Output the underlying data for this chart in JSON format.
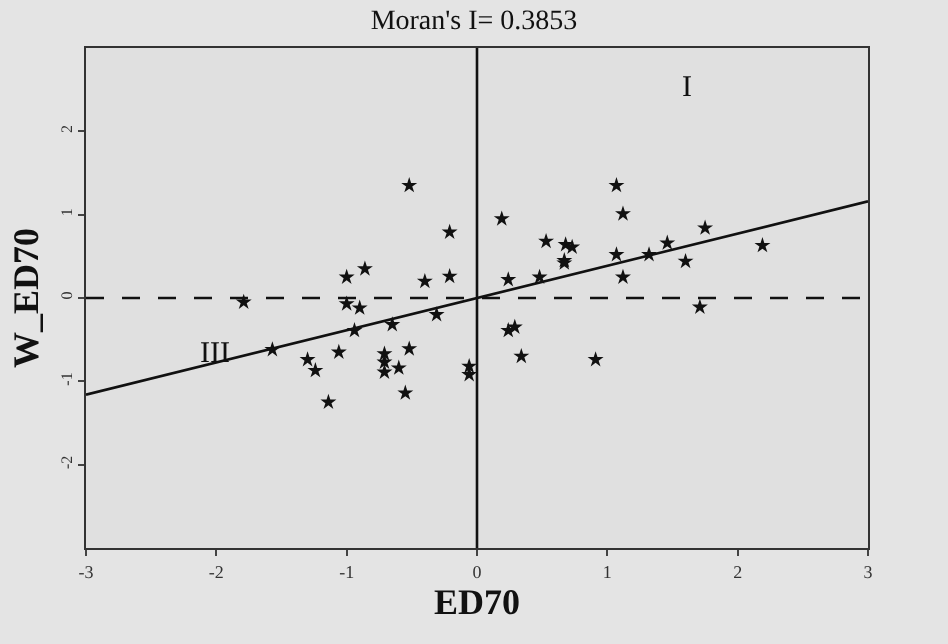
{
  "chart_data": {
    "type": "scatter",
    "title": "Moran's I= 0.3853",
    "xlabel": "ED70",
    "ylabel": "W_ED70",
    "xlim": [
      -3,
      3
    ],
    "xticks": [
      -3,
      -2,
      -1,
      0,
      1,
      2,
      3
    ],
    "ylim": [
      -3,
      3
    ],
    "yticks": [
      -2,
      -1,
      0,
      1,
      2
    ],
    "grid": false,
    "marker": "star",
    "series": [
      {
        "color": "#111111",
        "x": [
          -0.52,
          -0.21,
          -0.86,
          -1.0,
          -0.4,
          -0.21,
          -1.79,
          -1.0,
          -0.9,
          -0.31,
          -0.94,
          -0.65,
          -0.52,
          -1.57,
          -1.06,
          -1.3,
          -1.24,
          -0.71,
          -0.71,
          -0.6,
          -0.71,
          -0.06,
          -0.06,
          -0.55,
          -1.14,
          1.07,
          1.12,
          0.19,
          0.53,
          0.68,
          0.73,
          0.67,
          0.67,
          1.75,
          1.46,
          2.19,
          1.32,
          1.07,
          1.6,
          1.12,
          0.48,
          0.24,
          1.71,
          0.29,
          0.24,
          0.34,
          0.91
        ],
        "values": [
          1.35,
          0.79,
          0.35,
          0.25,
          0.2,
          0.26,
          -0.05,
          -0.07,
          -0.12,
          -0.2,
          -0.39,
          -0.32,
          -0.61,
          -0.62,
          -0.65,
          -0.74,
          -0.87,
          -0.67,
          -0.77,
          -0.84,
          -0.89,
          -0.82,
          -0.92,
          -1.14,
          -1.25,
          1.35,
          1.01,
          0.95,
          0.68,
          0.64,
          0.61,
          0.45,
          0.42,
          0.84,
          0.66,
          0.63,
          0.52,
          0.52,
          0.44,
          0.25,
          0.25,
          0.22,
          -0.11,
          -0.35,
          -0.39,
          -0.7,
          -0.74
        ]
      },
      {
        "type": "line",
        "color": "#111111",
        "line_style": "solid",
        "marker": "none",
        "x": [
          -3,
          3
        ],
        "values": [
          -1.16,
          1.16
        ]
      }
    ],
    "ref_lines": [
      {
        "axis": "y",
        "value": 0,
        "line_style": "dashed",
        "color": "#111111"
      },
      {
        "axis": "x",
        "value": 0,
        "line_style": "solid",
        "color": "#111111"
      }
    ],
    "annotations": [
      "I",
      "III"
    ]
  }
}
